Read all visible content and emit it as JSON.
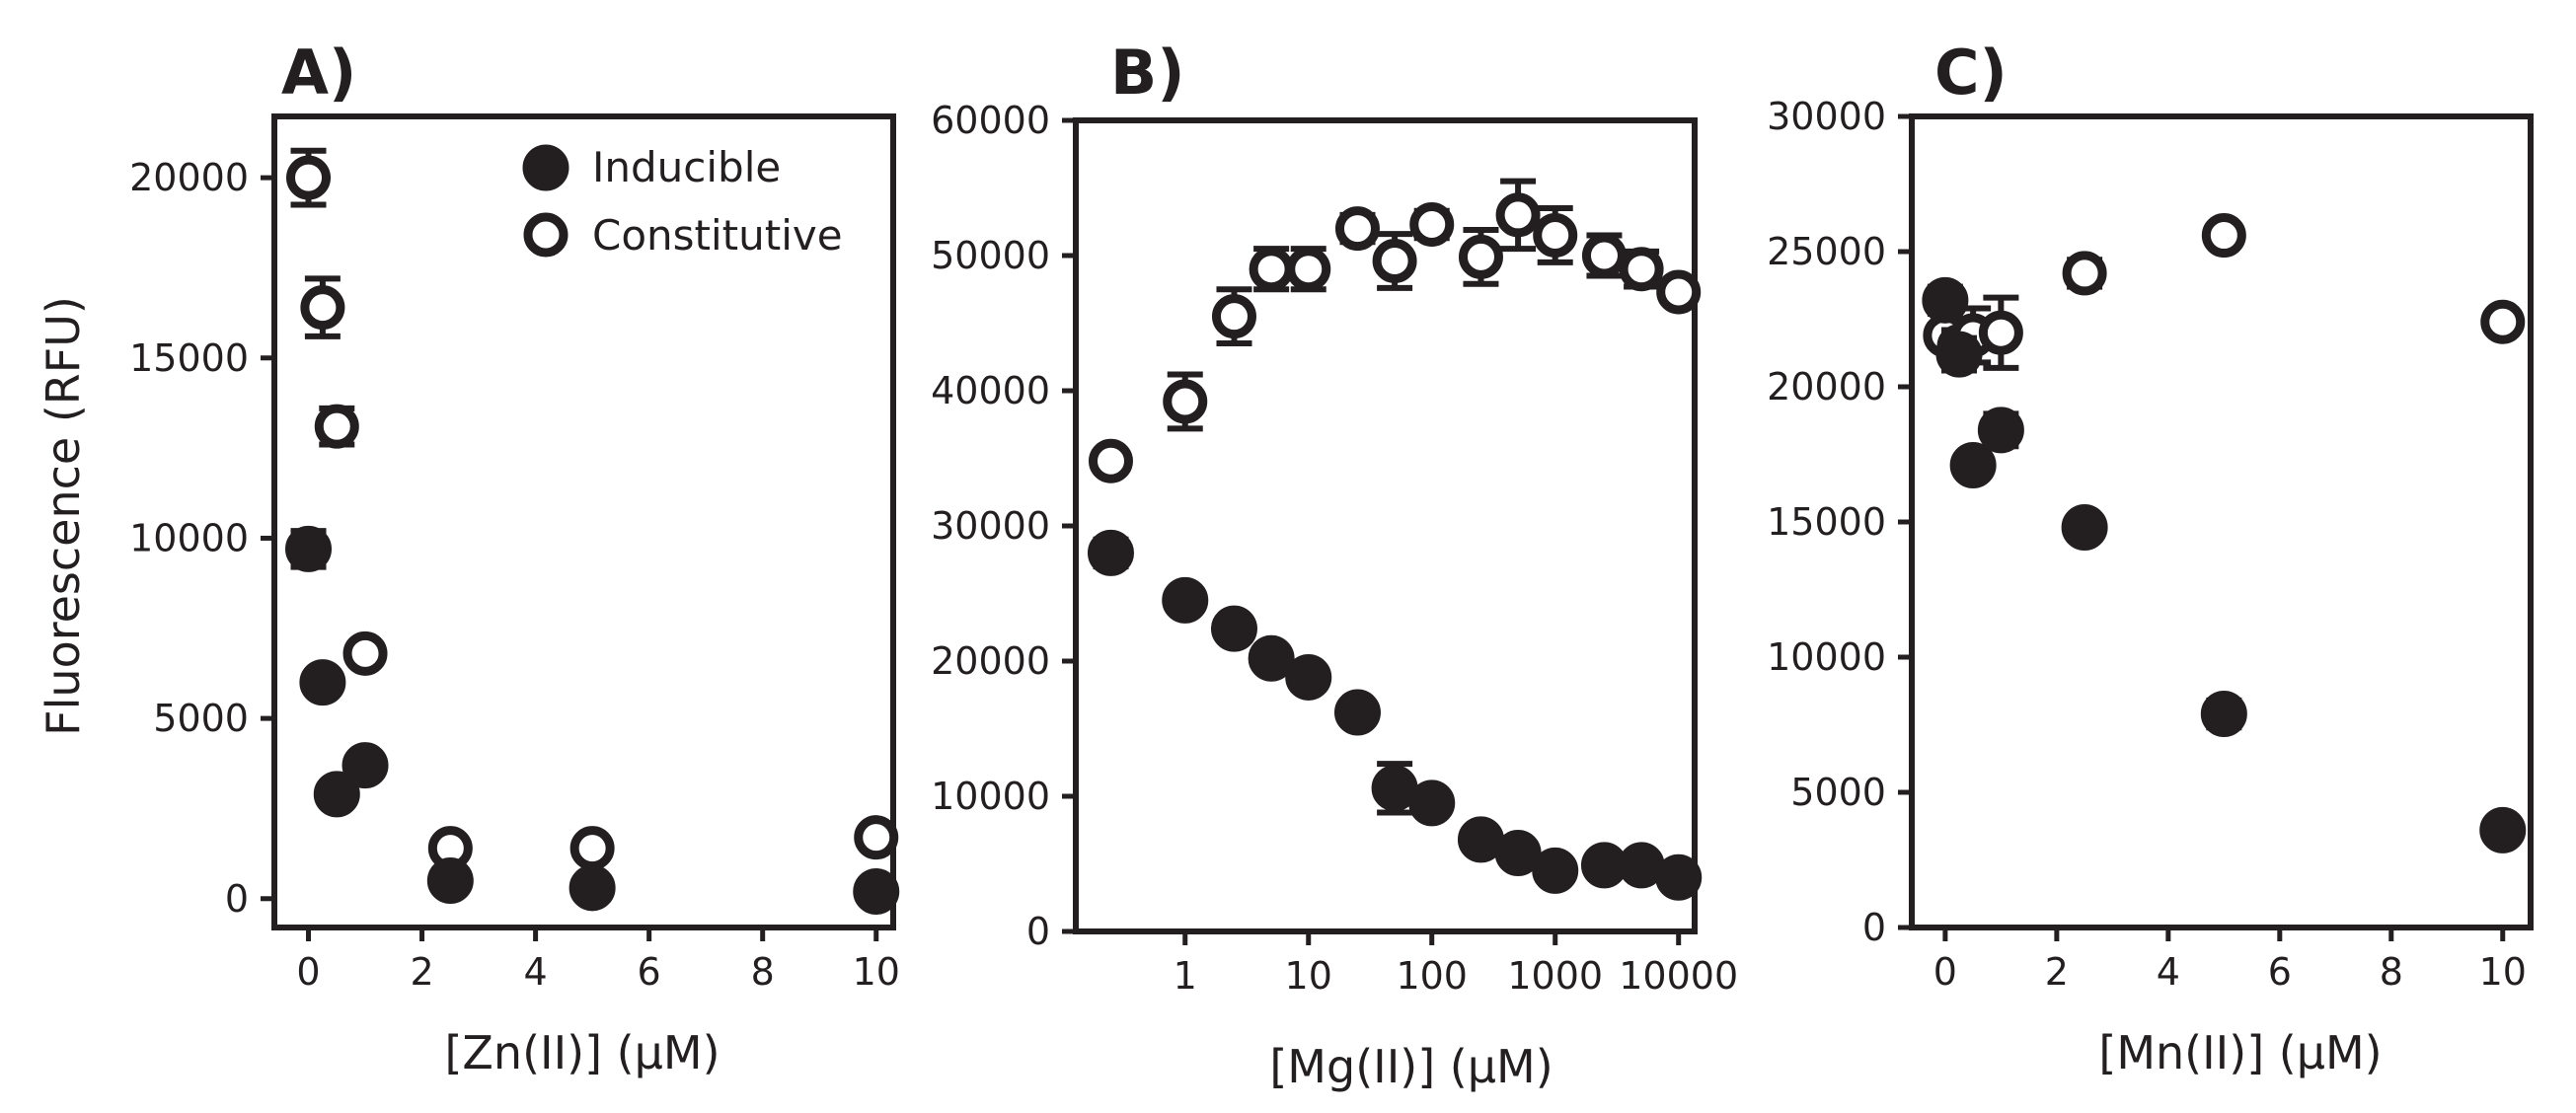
{
  "figure": {
    "ylabel": "Fluorescence (RFU)",
    "legend": {
      "inducible": "Inducible",
      "constitutive": "Constitutive"
    }
  },
  "chart_data": [
    {
      "id": "A",
      "panel_label": "A)",
      "type": "scatter",
      "xscale": "linear",
      "xlabel": "[Zn(II)] (μM)",
      "ylabel": "Fluorescence (RFU)",
      "xlim": [
        -0.6,
        10.3
      ],
      "ylim": [
        -800,
        21700
      ],
      "xticks": [
        0,
        2,
        4,
        6,
        8,
        10
      ],
      "xtick_labels": [
        "0",
        "2",
        "4",
        "6",
        "8",
        "10"
      ],
      "yticks": [
        0,
        5000,
        10000,
        15000,
        20000
      ],
      "ytick_labels": [
        "0",
        "5000",
        "10000",
        "15000",
        "20000"
      ],
      "legend_position": "top-right",
      "series": [
        {
          "name": "Inducible",
          "marker": "filled-circle",
          "points": [
            {
              "x": 0,
              "y": 9700,
              "err": 500
            },
            {
              "x": 0.25,
              "y": 6000,
              "err": 0
            },
            {
              "x": 0.5,
              "y": 2900,
              "err": 0
            },
            {
              "x": 1,
              "y": 3700,
              "err": 0
            },
            {
              "x": 2.5,
              "y": 500,
              "err": 0
            },
            {
              "x": 5,
              "y": 300,
              "err": 0
            },
            {
              "x": 10,
              "y": 200,
              "err": 0
            }
          ]
        },
        {
          "name": "Constitutive",
          "marker": "open-circle",
          "points": [
            {
              "x": 0,
              "y": 20000,
              "err": 750
            },
            {
              "x": 0.25,
              "y": 16400,
              "err": 800
            },
            {
              "x": 0.5,
              "y": 13100,
              "err": 500
            },
            {
              "x": 1,
              "y": 6800,
              "err": 0
            },
            {
              "x": 2.5,
              "y": 1400,
              "err": 0
            },
            {
              "x": 5,
              "y": 1400,
              "err": 0
            },
            {
              "x": 10,
              "y": 1700,
              "err": 0
            }
          ]
        }
      ]
    },
    {
      "id": "B",
      "panel_label": "B)",
      "type": "scatter",
      "xscale": "log",
      "xlabel": "[Mg(II)] (μM)",
      "ylabel": "",
      "xlim": [
        0.13,
        13500
      ],
      "ylim": [
        0,
        60000
      ],
      "xticks": [
        1,
        10,
        100,
        1000,
        10000
      ],
      "xtick_labels": [
        "1",
        "10",
        "100",
        "1000",
        "10000"
      ],
      "yticks": [
        0,
        10000,
        20000,
        30000,
        40000,
        50000,
        60000
      ],
      "ytick_labels": [
        "0",
        "10000",
        "20000",
        "30000",
        "40000",
        "50000",
        "60000"
      ],
      "series": [
        {
          "name": "Inducible",
          "marker": "filled-circle",
          "points": [
            {
              "x": 0.25,
              "y": 28000,
              "err": 1000
            },
            {
              "x": 1,
              "y": 24500,
              "err": 0
            },
            {
              "x": 2.5,
              "y": 22400,
              "err": 800
            },
            {
              "x": 5,
              "y": 20200,
              "err": 0
            },
            {
              "x": 10,
              "y": 18800,
              "err": 0
            },
            {
              "x": 25,
              "y": 16200,
              "err": 0
            },
            {
              "x": 50,
              "y": 10600,
              "err": 1800
            },
            {
              "x": 100,
              "y": 9500,
              "err": 0
            },
            {
              "x": 250,
              "y": 6800,
              "err": 0
            },
            {
              "x": 500,
              "y": 5800,
              "err": 0
            },
            {
              "x": 1000,
              "y": 4500,
              "err": 0
            },
            {
              "x": 2500,
              "y": 4900,
              "err": 0
            },
            {
              "x": 5000,
              "y": 4900,
              "err": 0
            },
            {
              "x": 10000,
              "y": 4000,
              "err": 0
            }
          ]
        },
        {
          "name": "Constitutive",
          "marker": "open-circle",
          "points": [
            {
              "x": 0.25,
              "y": 34800,
              "err": 600
            },
            {
              "x": 1,
              "y": 39200,
              "err": 2000
            },
            {
              "x": 2.5,
              "y": 45500,
              "err": 2000
            },
            {
              "x": 5,
              "y": 49000,
              "err": 1500
            },
            {
              "x": 10,
              "y": 49000,
              "err": 1500
            },
            {
              "x": 25,
              "y": 52000,
              "err": 1000
            },
            {
              "x": 50,
              "y": 49600,
              "err": 2000
            },
            {
              "x": 100,
              "y": 52300,
              "err": 1000
            },
            {
              "x": 250,
              "y": 49900,
              "err": 2000
            },
            {
              "x": 500,
              "y": 53000,
              "err": 2500
            },
            {
              "x": 1000,
              "y": 51500,
              "err": 2000
            },
            {
              "x": 2500,
              "y": 50000,
              "err": 1500
            },
            {
              "x": 5000,
              "y": 49000,
              "err": 1300
            },
            {
              "x": 10000,
              "y": 47300,
              "err": 0
            }
          ]
        }
      ]
    },
    {
      "id": "C",
      "panel_label": "C)",
      "type": "scatter",
      "xscale": "linear",
      "xlabel": "[Mn(II)] (μM)",
      "ylabel": "",
      "xlim": [
        -0.6,
        10.5
      ],
      "ylim": [
        0,
        30000
      ],
      "xticks": [
        0,
        2,
        4,
        6,
        8,
        10
      ],
      "xtick_labels": [
        "0",
        "2",
        "4",
        "6",
        "8",
        "10"
      ],
      "yticks": [
        0,
        5000,
        10000,
        15000,
        20000,
        25000,
        30000
      ],
      "ytick_labels": [
        "0",
        "5000",
        "10000",
        "15000",
        "20000",
        "25000",
        "30000"
      ],
      "series": [
        {
          "name": "Inducible",
          "marker": "filled-circle",
          "points": [
            {
              "x": 0,
              "y": 23200,
              "err": 500
            },
            {
              "x": 0.25,
              "y": 21200,
              "err": 600
            },
            {
              "x": 0.5,
              "y": 17100,
              "err": 0
            },
            {
              "x": 1,
              "y": 18400,
              "err": 600
            },
            {
              "x": 2.5,
              "y": 14800,
              "err": 0
            },
            {
              "x": 5,
              "y": 7900,
              "err": 500
            },
            {
              "x": 10,
              "y": 3600,
              "err": 0
            }
          ]
        },
        {
          "name": "Constitutive",
          "marker": "open-circle",
          "points": [
            {
              "x": 0,
              "y": 21900,
              "err": 400
            },
            {
              "x": 0.25,
              "y": 21500,
              "err": 600
            },
            {
              "x": 0.5,
              "y": 21900,
              "err": 1000
            },
            {
              "x": 1,
              "y": 22000,
              "err": 1300
            },
            {
              "x": 2.5,
              "y": 24200,
              "err": 500
            },
            {
              "x": 5,
              "y": 25600,
              "err": 0
            },
            {
              "x": 10,
              "y": 22400,
              "err": 0
            }
          ]
        }
      ]
    }
  ]
}
